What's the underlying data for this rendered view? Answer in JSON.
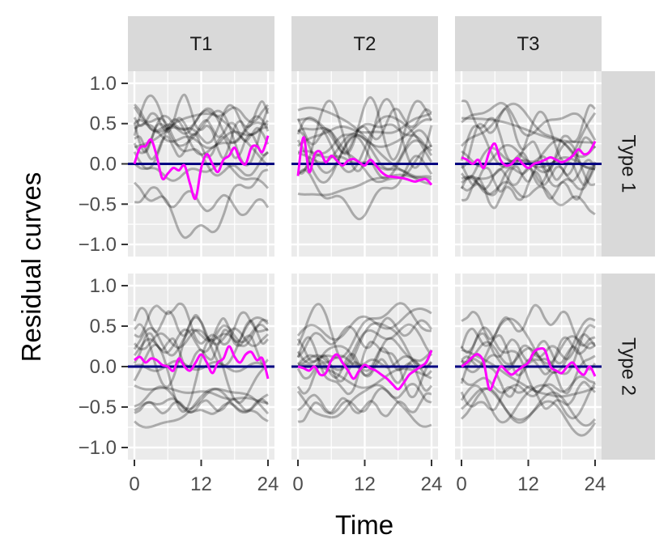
{
  "chart_data": {
    "type": "line",
    "xlabel": "Time",
    "ylabel": "Residual curves",
    "xlim": [
      0,
      24
    ],
    "ylim": [
      -1.05,
      1.05
    ],
    "x_ticks": [
      0,
      12,
      24
    ],
    "x_tick_labels": [
      "0",
      "12",
      "24"
    ],
    "y_ticks": [
      -1.0,
      -0.5,
      0.0,
      0.5,
      1.0
    ],
    "y_tick_labels": [
      "−1.0",
      "−0.5",
      "0.0",
      "0.5",
      "1.0"
    ],
    "grid": true,
    "column_facets": [
      "T1",
      "T2",
      "T3"
    ],
    "row_facets": [
      "Type 1",
      "Type 2"
    ],
    "colors": {
      "panel_background": "#ebebeb",
      "grid": "#ffffff",
      "strip_background": "#d9d9d9",
      "individual_curves": "#000000",
      "mean_curve": "#ff00ff",
      "zero_line": "#000080"
    },
    "x": [
      0,
      1,
      2,
      3,
      4,
      5,
      6,
      7,
      8,
      9,
      10,
      11,
      12,
      13,
      14,
      15,
      16,
      17,
      18,
      19,
      20,
      21,
      22,
      23,
      24
    ],
    "panels": [
      {
        "column": "T1",
        "row": "Type 1",
        "mean_curve": [
          0.0,
          0.2,
          0.22,
          0.3,
          0.1,
          -0.18,
          -0.12,
          -0.05,
          -0.08,
          -0.02,
          -0.25,
          -0.43,
          -0.05,
          0.12,
          0.0,
          -0.1,
          0.05,
          0.1,
          0.2,
          0.05,
          0.0,
          0.2,
          0.22,
          0.15,
          0.35
        ]
      },
      {
        "column": "T2",
        "row": "Type 1",
        "mean_curve": [
          -0.15,
          0.33,
          -0.1,
          0.12,
          0.15,
          0.02,
          0.1,
          0.04,
          -0.02,
          0.04,
          0.06,
          0.02,
          -0.02,
          0.05,
          -0.02,
          -0.1,
          -0.15,
          -0.16,
          -0.17,
          -0.18,
          -0.2,
          -0.22,
          -0.2,
          -0.19,
          -0.26
        ]
      },
      {
        "column": "T3",
        "row": "Type 1",
        "mean_curve": [
          0.08,
          0.05,
          0.0,
          0.05,
          -0.05,
          0.15,
          0.25,
          0.05,
          -0.02,
          0.0,
          0.07,
          0.0,
          -0.05,
          0.0,
          0.02,
          0.05,
          0.08,
          0.05,
          0.02,
          0.05,
          0.1,
          0.18,
          0.12,
          0.15,
          0.28
        ]
      },
      {
        "column": "T1",
        "row": "Type 2",
        "mean_curve": [
          0.08,
          0.12,
          0.05,
          0.1,
          0.08,
          0.02,
          0.0,
          -0.05,
          0.1,
          0.0,
          -0.05,
          0.05,
          0.15,
          0.05,
          -0.08,
          0.05,
          0.1,
          0.25,
          0.12,
          0.05,
          0.15,
          0.18,
          0.08,
          0.1,
          -0.15
        ]
      },
      {
        "column": "T2",
        "row": "Type 2",
        "mean_curve": [
          0.0,
          -0.02,
          -0.05,
          0.0,
          -0.1,
          -0.08,
          0.08,
          0.15,
          0.05,
          -0.05,
          -0.15,
          -0.05,
          0.02,
          -0.02,
          -0.05,
          -0.1,
          -0.15,
          -0.22,
          -0.28,
          -0.2,
          -0.1,
          -0.05,
          0.0,
          0.05,
          0.2
        ]
      },
      {
        "column": "T3",
        "row": "Type 2",
        "mean_curve": [
          0.0,
          0.05,
          0.12,
          0.15,
          0.05,
          -0.28,
          -0.15,
          0.0,
          -0.05,
          -0.1,
          -0.05,
          0.0,
          0.05,
          0.18,
          0.22,
          0.2,
          0.0,
          -0.05,
          -0.08,
          0.0,
          0.05,
          -0.05,
          -0.1,
          0.0,
          -0.12
        ]
      }
    ]
  }
}
